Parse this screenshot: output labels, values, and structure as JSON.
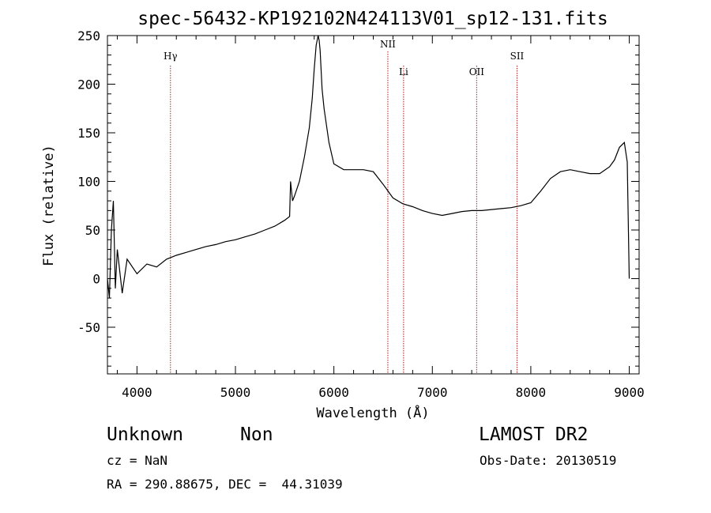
{
  "chart_data": {
    "type": "line",
    "title": "spec-56432-KP192102N424113V01_sp12-131.fits",
    "xlabel": "Wavelength (Å)",
    "ylabel": "Flux (relative)",
    "xlim": [
      3700,
      9100
    ],
    "ylim": [
      -98,
      250
    ],
    "xticks": [
      4000,
      5000,
      6000,
      7000,
      8000,
      9000
    ],
    "yticks": [
      -50,
      0,
      50,
      100,
      150,
      200,
      250
    ],
    "grid": false,
    "series": [
      {
        "color": "#000000",
        "x": [
          3700,
          3720,
          3740,
          3760,
          3780,
          3800,
          3850,
          3900,
          4000,
          4100,
          4200,
          4300,
          4400,
          4500,
          4600,
          4700,
          4800,
          4900,
          5000,
          5100,
          5200,
          5300,
          5400,
          5500,
          5550,
          5560,
          5580,
          5600,
          5650,
          5700,
          5750,
          5780,
          5800,
          5820,
          5840,
          5850,
          5860,
          5880,
          5900,
          5950,
          6000,
          6100,
          6200,
          6300,
          6400,
          6500,
          6600,
          6700,
          6800,
          6900,
          7000,
          7100,
          7200,
          7300,
          7400,
          7500,
          7600,
          7700,
          7800,
          7900,
          8000,
          8100,
          8200,
          8300,
          8400,
          8500,
          8600,
          8700,
          8800,
          8850,
          8900,
          8950,
          8980,
          9000
        ],
        "y": [
          0,
          -20,
          50,
          80,
          -10,
          30,
          -15,
          20,
          5,
          15,
          12,
          20,
          24,
          27,
          30,
          33,
          35,
          38,
          40,
          43,
          46,
          50,
          54,
          60,
          64,
          100,
          80,
          85,
          100,
          125,
          155,
          185,
          215,
          240,
          250,
          245,
          235,
          195,
          175,
          140,
          118,
          112,
          112,
          112,
          110,
          97,
          83,
          77,
          74,
          70,
          67,
          65,
          67,
          69,
          70,
          70,
          71,
          72,
          73,
          75,
          78,
          90,
          103,
          110,
          112,
          110,
          108,
          108,
          115,
          122,
          135,
          140,
          120,
          0
        ]
      }
    ],
    "lines": [
      {
        "label": "Hγ",
        "x": 4340
      },
      {
        "label": "NII",
        "x": 6548
      },
      {
        "label": "Li",
        "x": 6708
      },
      {
        "label": "OII",
        "x": 7450
      },
      {
        "label": "SII",
        "x": 7860
      }
    ],
    "line_color": "#b22222"
  },
  "footer": {
    "classification": "Unknown",
    "subclass": "Non",
    "survey": "LAMOST DR2",
    "cz": "cz = NaN",
    "obs_date": "Obs-Date: 20130519",
    "coords": "RA = 290.88675, DEC =  44.31039"
  }
}
